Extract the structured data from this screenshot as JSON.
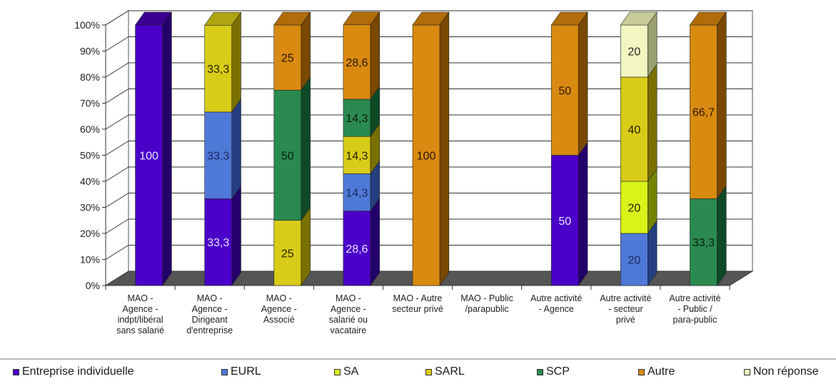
{
  "chart_data": {
    "type": "bar",
    "stacked": true,
    "three_d": true,
    "title": "",
    "xlabel": "",
    "ylabel": "",
    "ylim": [
      0,
      100
    ],
    "y_ticks": [
      "0%",
      "10%",
      "20%",
      "30%",
      "40%",
      "50%",
      "60%",
      "70%",
      "80%",
      "90%",
      "100%"
    ],
    "grid": true,
    "legend_position": "bottom",
    "categories": [
      [
        "MAO -",
        "Agence -",
        "indpt/libéral",
        "sans salarié"
      ],
      [
        "MAO -",
        "Agence -",
        "Dirigeant",
        "d'entreprise"
      ],
      [
        "MAO -",
        "Agence -",
        "Associé"
      ],
      [
        "MAO -",
        "Agence -",
        "salarié ou",
        "vacataire"
      ],
      [
        "MAO - Autre",
        "secteur privé"
      ],
      [
        "MAO - Public",
        "/parapublic"
      ],
      [
        "Autre  activité",
        "- Agence"
      ],
      [
        "Autre activité",
        "- secteur",
        "privé"
      ],
      [
        "Autre activité",
        "- Public /",
        "para-public"
      ]
    ],
    "series": [
      {
        "name": "Entreprise individuelle",
        "color": "#4a00c8",
        "side": "#24006a",
        "top": "#3a0090",
        "text": "#e8e0ff",
        "values": [
          100,
          33.3,
          0,
          28.6,
          0,
          0,
          50,
          0,
          0
        ],
        "labels": [
          "100",
          "33,3",
          "",
          "28,6",
          "",
          "",
          "50",
          "",
          ""
        ]
      },
      {
        "name": "EURL",
        "color": "#4f79d6",
        "side": "#243e80",
        "top": "#3a5aa8",
        "text": "#1a2a60",
        "values": [
          0,
          33.3,
          0,
          14.3,
          0,
          0,
          0,
          20,
          0
        ],
        "labels": [
          "",
          "33,3",
          "",
          "14,3",
          "",
          "",
          "",
          "20",
          ""
        ]
      },
      {
        "name": "SA",
        "color": "#d8f21a",
        "side": "#748400",
        "top": "#a8bc10",
        "text": "#222200",
        "values": [
          0,
          0,
          0,
          0,
          0,
          0,
          0,
          20,
          0
        ],
        "labels": [
          "",
          "",
          "",
          "",
          "",
          "",
          "",
          "20",
          ""
        ]
      },
      {
        "name": "SARL",
        "color": "#d9cc18",
        "side": "#7a7000",
        "top": "#b0a410",
        "text": "#222200",
        "values": [
          0,
          33.3,
          25,
          14.3,
          0,
          0,
          0,
          40,
          0
        ],
        "labels": [
          "",
          "33,3",
          "25",
          "14,3",
          "",
          "",
          "",
          "40",
          ""
        ]
      },
      {
        "name": "SCP",
        "color": "#2a8a50",
        "side": "#0e4a26",
        "top": "#1c6a3a",
        "text": "#0a1a10",
        "values": [
          0,
          0,
          50,
          14.3,
          0,
          0,
          0,
          0,
          33.3
        ],
        "labels": [
          "",
          "",
          "50",
          "14,3",
          "",
          "",
          "",
          "",
          "33,3"
        ]
      },
      {
        "name": "Autre",
        "color": "#d98a10",
        "side": "#7a4800",
        "top": "#b06c08",
        "text": "#2a1600",
        "values": [
          0,
          0,
          25,
          28.6,
          100,
          0,
          50,
          0,
          66.7
        ],
        "labels": [
          "",
          "",
          "25",
          "28,6",
          "100",
          "",
          "50",
          "",
          "66,7"
        ]
      },
      {
        "name": "Non réponse",
        "color": "#f2f6c0",
        "side": "#9aa070",
        "top": "#c8cc98",
        "text": "#222222",
        "values": [
          0,
          0,
          0,
          0,
          0,
          0,
          0,
          20,
          0
        ],
        "labels": [
          "",
          "",
          "",
          "",
          "",
          "",
          "",
          "20",
          ""
        ]
      }
    ]
  }
}
